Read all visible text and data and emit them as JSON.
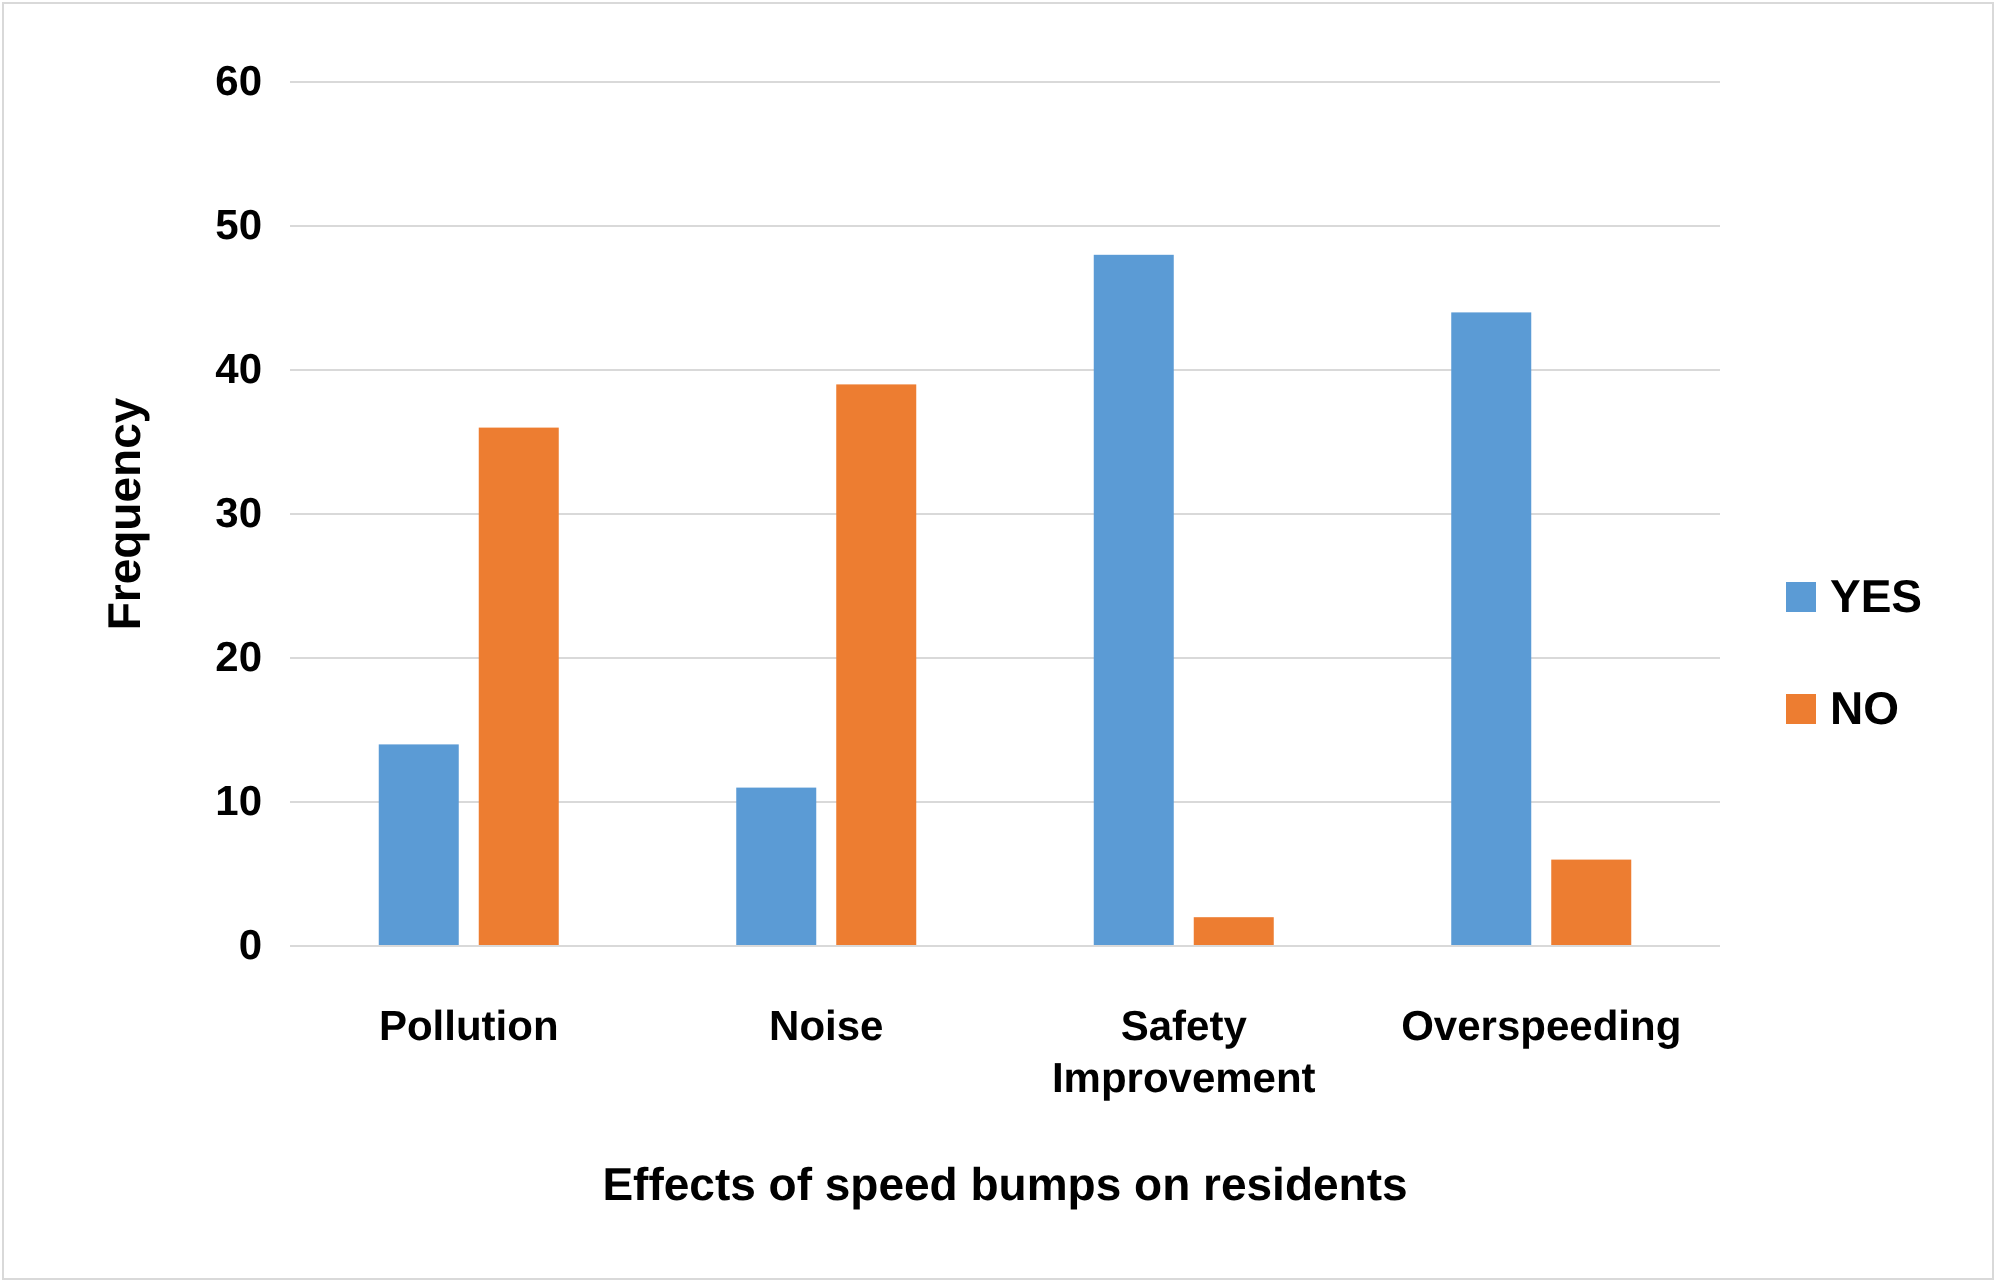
{
  "chart_data": {
    "type": "bar",
    "xlabel": "Effects of speed bumps on residents",
    "ylabel": "Frequency",
    "categories": [
      "Pollution",
      "Noise",
      "Safety Improvement",
      "Overspeeding"
    ],
    "series": [
      {
        "name": "YES",
        "color": "#5b9bd5",
        "values": [
          14,
          11,
          48,
          44
        ]
      },
      {
        "name": "NO",
        "color": "#ed7d31",
        "values": [
          36,
          39,
          2,
          6
        ]
      }
    ],
    "ylim": [
      0,
      60
    ],
    "yticks": [
      0,
      10,
      20,
      30,
      40,
      50,
      60
    ],
    "grid": "y",
    "legend": "right"
  }
}
